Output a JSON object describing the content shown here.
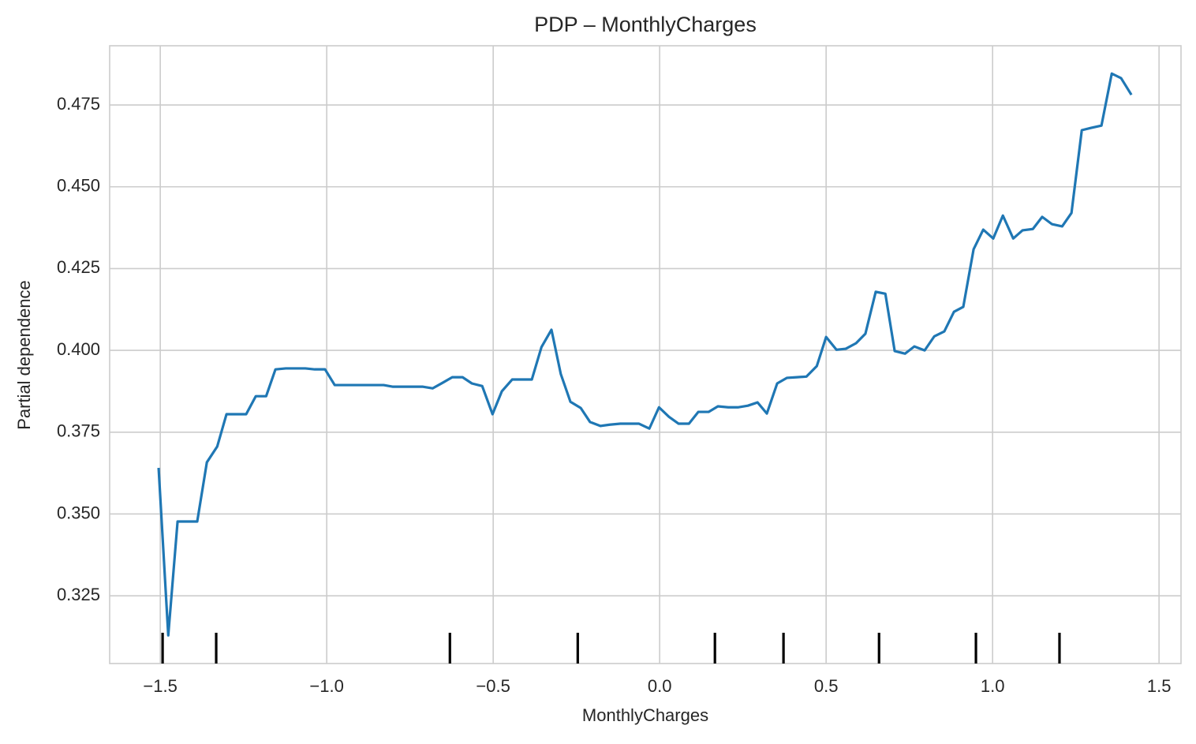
{
  "chart_data": {
    "type": "line",
    "title": "PDP – MonthlyCharges",
    "xlabel": "MonthlyCharges",
    "ylabel": "Partial dependence",
    "grid": true,
    "xlim": [
      -1.652,
      1.566
    ],
    "ylim": [
      0.3043,
      0.4931
    ],
    "xticks": [
      {
        "value": -1.5,
        "label": "−1.5"
      },
      {
        "value": -1.0,
        "label": "−1.0"
      },
      {
        "value": -0.5,
        "label": "−0.5"
      },
      {
        "value": 0.0,
        "label": "0.0"
      },
      0.5,
      {
        "value": 1.0,
        "label": "1.0"
      },
      1.5
    ],
    "yticks": [
      0.325,
      {
        "value": 0.35,
        "label": "0.350"
      },
      0.375,
      {
        "value": 0.4,
        "label": "0.400"
      },
      0.425,
      {
        "value": 0.45,
        "label": "0.450"
      },
      0.475
    ],
    "deciles": [
      -1.493,
      -1.332,
      -0.63,
      -0.246,
      0.166,
      0.372,
      0.659,
      0.95,
      1.201
    ],
    "deciles_color": "#000000",
    "series": [
      {
        "color": "#1f77b4",
        "x": [
          -1.505,
          -1.476,
          -1.448,
          -1.389,
          -1.36,
          -1.329,
          -1.301,
          -1.242,
          -1.213,
          -1.182,
          -1.154,
          -1.123,
          -1.064,
          -1.036,
          -1.005,
          -0.976,
          -0.829,
          -0.801,
          -0.711,
          -0.682,
          -0.652,
          -0.623,
          -0.592,
          -0.564,
          -0.533,
          -0.502,
          -0.474,
          -0.443,
          -0.384,
          -0.355,
          -0.325,
          -0.297,
          -0.268,
          -0.237,
          -0.209,
          -0.178,
          -0.15,
          -0.118,
          -0.062,
          -0.031,
          -0.002,
          0.028,
          0.057,
          0.088,
          0.116,
          0.147,
          0.175,
          0.206,
          0.235,
          0.265,
          0.294,
          0.322,
          0.353,
          0.382,
          0.412,
          0.441,
          0.472,
          0.5,
          0.531,
          0.559,
          0.59,
          0.618,
          0.649,
          0.678,
          0.706,
          0.737,
          0.765,
          0.796,
          0.825,
          0.855,
          0.884,
          0.912,
          0.943,
          0.972,
          1.002,
          1.031,
          1.062,
          1.09,
          1.121,
          1.149,
          1.178,
          1.209,
          1.237,
          1.268,
          1.296,
          1.327,
          1.358,
          1.386,
          1.417
        ],
        "values": [
          0.3641,
          0.3129,
          0.3477,
          0.3477,
          0.3658,
          0.3706,
          0.3805,
          0.3805,
          0.386,
          0.386,
          0.3942,
          0.3945,
          0.3945,
          0.3942,
          0.3942,
          0.3894,
          0.3894,
          0.3889,
          0.3889,
          0.3884,
          0.3901,
          0.3918,
          0.3918,
          0.3899,
          0.3891,
          0.3805,
          0.3875,
          0.3911,
          0.3911,
          0.401,
          0.4063,
          0.3928,
          0.3843,
          0.3824,
          0.3781,
          0.3769,
          0.3773,
          0.3776,
          0.3776,
          0.3761,
          0.3826,
          0.3797,
          0.3776,
          0.3776,
          0.3812,
          0.3812,
          0.3829,
          0.3826,
          0.3826,
          0.3831,
          0.3841,
          0.3807,
          0.3899,
          0.3916,
          0.3918,
          0.392,
          0.3952,
          0.4041,
          0.4002,
          0.4005,
          0.4022,
          0.4051,
          0.4179,
          0.4173,
          0.3998,
          0.399,
          0.4012,
          0.4,
          0.4043,
          0.4058,
          0.4118,
          0.4133,
          0.4309,
          0.4369,
          0.4342,
          0.4412,
          0.4342,
          0.4367,
          0.4371,
          0.4408,
          0.4386,
          0.4379,
          0.442,
          0.4673,
          0.468,
          0.4687,
          0.4846,
          0.4832,
          0.4781
        ]
      }
    ]
  }
}
